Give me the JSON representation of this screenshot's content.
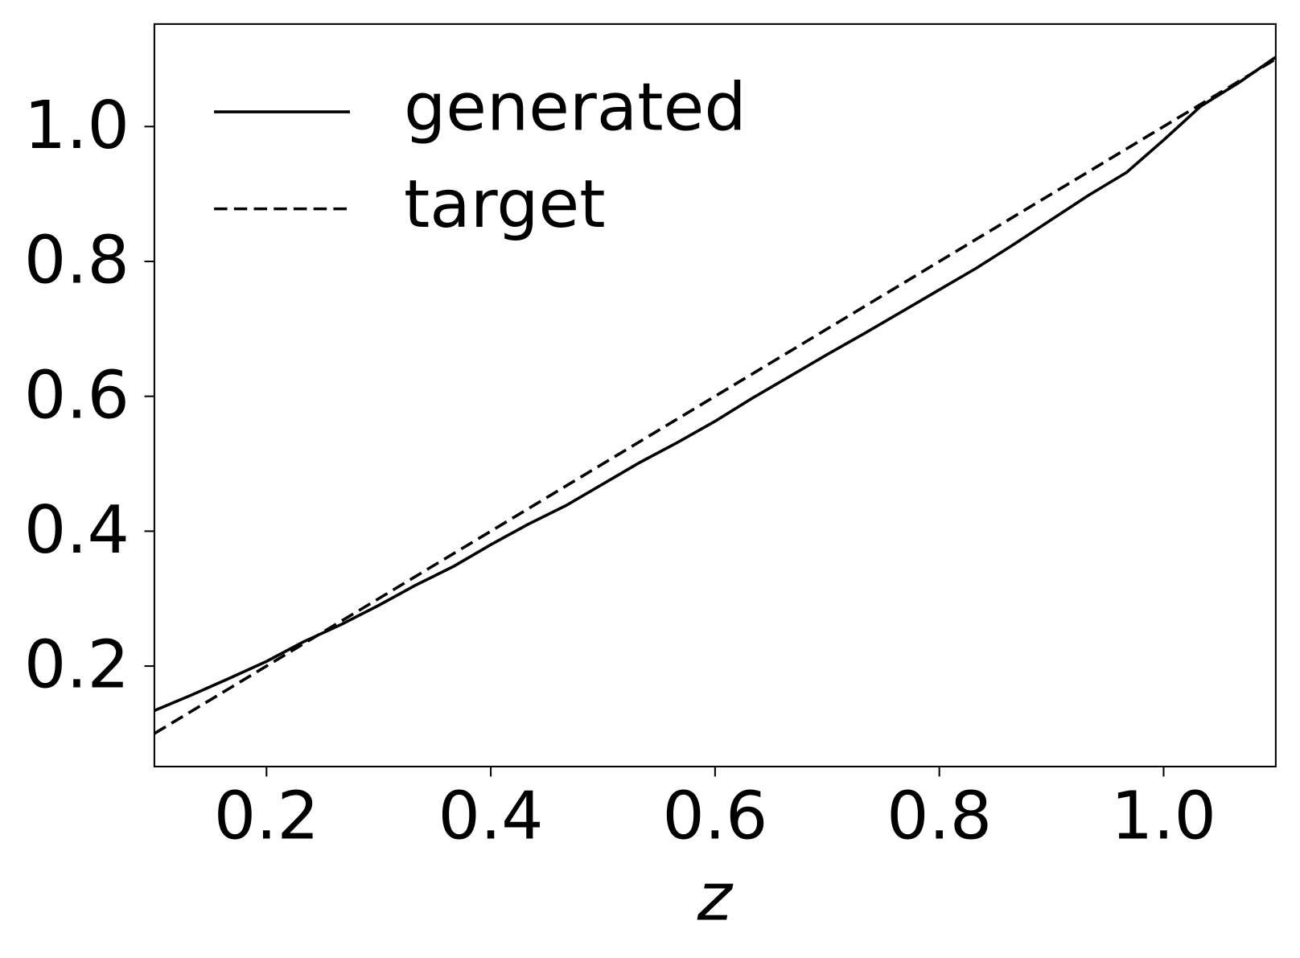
{
  "chart_data": {
    "type": "line",
    "xlabel": "z",
    "x": [
      0.1,
      0.133,
      0.167,
      0.2,
      0.233,
      0.267,
      0.3,
      0.333,
      0.367,
      0.4,
      0.433,
      0.467,
      0.5,
      0.533,
      0.567,
      0.6,
      0.633,
      0.667,
      0.7,
      0.733,
      0.767,
      0.8,
      0.833,
      0.867,
      0.9,
      0.933,
      0.967,
      1.0,
      1.033,
      1.067,
      1.1
    ],
    "series": [
      {
        "name": "generated",
        "color": "#000000",
        "linestyle": "solid",
        "values": [
          0.134,
          0.157,
          0.182,
          0.207,
          0.236,
          0.262,
          0.29,
          0.32,
          0.348,
          0.38,
          0.41,
          0.438,
          0.47,
          0.502,
          0.532,
          0.563,
          0.597,
          0.63,
          0.662,
          0.693,
          0.726,
          0.758,
          0.79,
          0.826,
          0.862,
          0.898,
          0.932,
          0.98,
          1.03,
          1.065,
          1.103
        ]
      },
      {
        "name": "target",
        "color": "#000000",
        "linestyle": "dashed",
        "values": [
          0.1,
          0.133,
          0.167,
          0.2,
          0.233,
          0.267,
          0.3,
          0.333,
          0.367,
          0.4,
          0.433,
          0.467,
          0.5,
          0.533,
          0.567,
          0.6,
          0.633,
          0.667,
          0.7,
          0.733,
          0.767,
          0.8,
          0.833,
          0.867,
          0.9,
          0.933,
          0.967,
          1.0,
          1.033,
          1.067,
          1.1
        ]
      }
    ],
    "xlim": [
      0.1,
      1.1
    ],
    "xticks": [
      0.2,
      0.4,
      0.6,
      0.8,
      {
        "value": 1,
        "label": "1.0"
      }
    ],
    "ylim": [
      0.051,
      1.152
    ],
    "yticks": [
      0.2,
      0.4,
      0.6,
      0.8,
      {
        "value": 1,
        "label": "1.0"
      }
    ],
    "legend": "upper left"
  }
}
